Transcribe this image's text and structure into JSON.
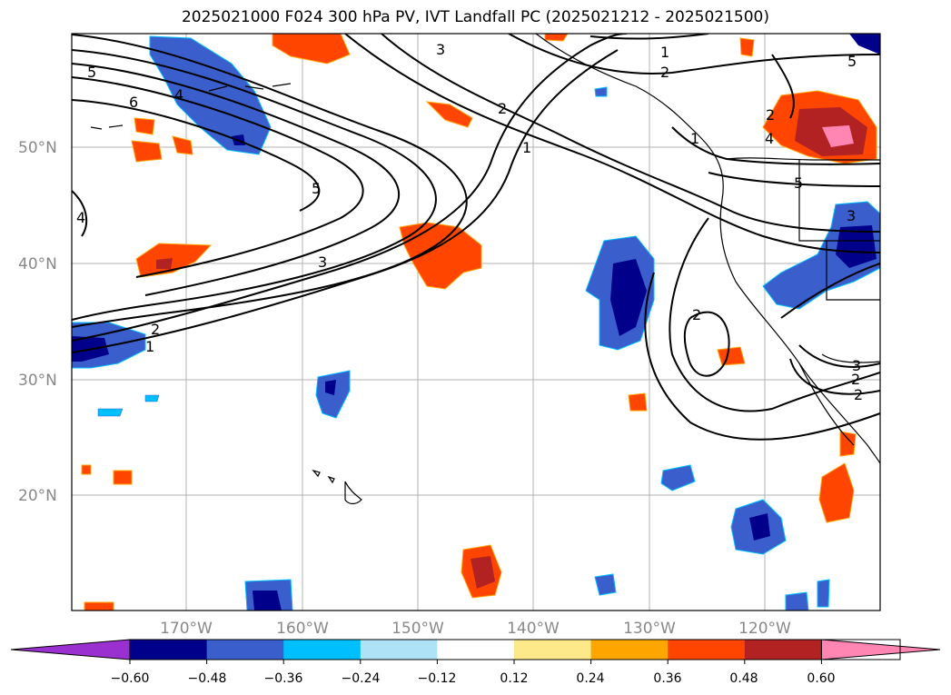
{
  "title": "2025021000 F024 300 hPa PV, IVT Landfall PC (2025021212 - 2025021500)",
  "lat_labels": [
    "50°N",
    "40°N",
    "30°N",
    "20°N"
  ],
  "lon_labels": [
    "170°W",
    "160°W",
    "150°W",
    "140°W",
    "130°W",
    "120°W"
  ],
  "colorbar": {
    "tick_labels": [
      "−0.60",
      "−0.48",
      "−0.36",
      "−0.24",
      "−0.12",
      "0.12",
      "0.24",
      "0.36",
      "0.48",
      "0.60"
    ],
    "colors": [
      "#9b30d0",
      "#00008b",
      "#3a5fcd",
      "#00bfff",
      "#aee3f7",
      "#ffffff",
      "#fde98a",
      "#ffa500",
      "#ff4500",
      "#b22222",
      "#ff85b3"
    ]
  },
  "contour_labels": [
    "5",
    "6",
    "4",
    "3",
    "1",
    "2",
    "2",
    "1",
    "2",
    "1",
    "5",
    "3",
    "2",
    "1",
    "2",
    "4",
    "5",
    "3",
    "2",
    "3",
    "2",
    "5",
    "4"
  ]
}
